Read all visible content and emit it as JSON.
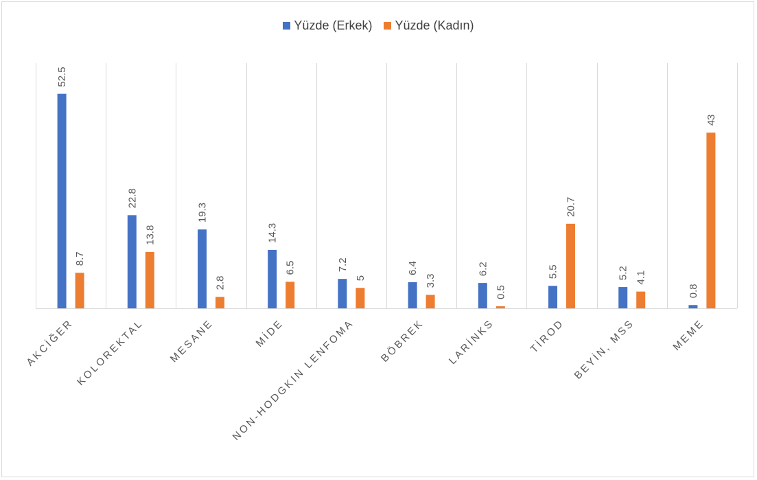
{
  "chart_data": {
    "type": "bar",
    "categories": [
      "AKCİĞER",
      "KOLOREKTAL",
      "MESANE",
      "MİDE",
      "NON-HODGKIN LENFOMA",
      "BÖBREK",
      "LARİNKS",
      "TİROD",
      "BEYİN, MSS",
      "MEME"
    ],
    "series": [
      {
        "name": "Yüzde (Erkek)",
        "color": "#4472c4",
        "values": [
          52.5,
          22.8,
          19.3,
          14.3,
          7.2,
          6.4,
          6.2,
          5.5,
          5.2,
          0.8
        ]
      },
      {
        "name": "Yüzde (Kadın)",
        "color": "#ed7d31",
        "values": [
          8.7,
          13.8,
          2.8,
          6.5,
          5,
          3.3,
          0.5,
          20.7,
          4.1,
          43
        ]
      }
    ],
    "ylim": [
      0,
      60
    ],
    "grid": "vertical",
    "legend": "top",
    "data_labels": true
  }
}
